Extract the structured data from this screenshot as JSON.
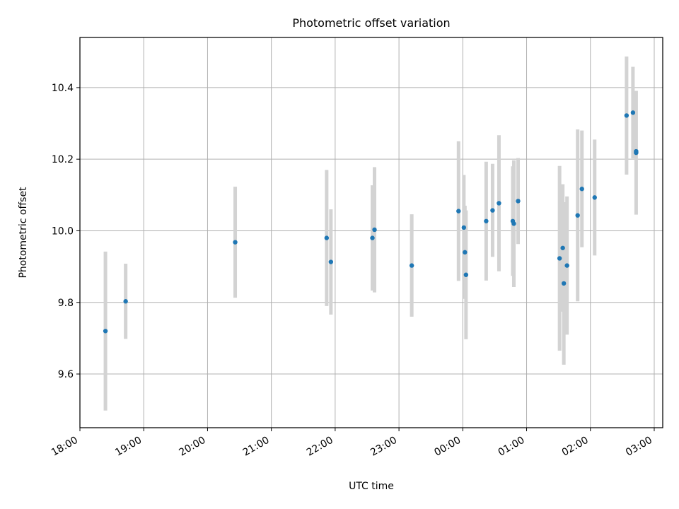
{
  "chart_data": {
    "type": "scatter",
    "title": "Photometric offset variation",
    "xlabel": "UTC time",
    "ylabel": "Photometric offset",
    "x_tick_labels": [
      "18:00",
      "19:00",
      "20:00",
      "21:00",
      "22:00",
      "23:00",
      "00:00",
      "01:00",
      "02:00",
      "03:00"
    ],
    "y_ticks": [
      9.6,
      9.8,
      10.0,
      10.2,
      10.4
    ],
    "y_tick_labels": [
      "9.6",
      "9.8",
      "10.0",
      "10.2",
      "10.4"
    ],
    "xlim": [
      "18:00",
      "03:08"
    ],
    "ylim": [
      9.45,
      10.54
    ],
    "grid": true,
    "colors": {
      "marker": "#1f77b4",
      "errorbar": "#d3d3d3",
      "grid": "#b0b0b0",
      "axes": "#000000"
    },
    "series": [
      {
        "points": [
          {
            "x": "18:24",
            "y": 9.72,
            "yerr": 0.222
          },
          {
            "x": "18:43",
            "y": 9.803,
            "yerr": 0.105
          },
          {
            "x": "20:26",
            "y": 9.968,
            "yerr": 0.155
          },
          {
            "x": "21:52",
            "y": 9.98,
            "yerr": 0.19
          },
          {
            "x": "21:56",
            "y": 9.913,
            "yerr": 0.147
          },
          {
            "x": "22:35",
            "y": 9.98,
            "yerr": 0.147
          },
          {
            "x": "22:37",
            "y": 10.003,
            "yerr": 0.175
          },
          {
            "x": "23:12",
            "y": 9.903,
            "yerr": 0.143
          },
          {
            "x": "23:56",
            "y": 10.055,
            "yerr": 0.195
          },
          {
            "x": "00:01",
            "y": 10.009,
            "yerr": 0.147
          },
          {
            "x": "00:02",
            "y": 9.94,
            "yerr": 0.13
          },
          {
            "x": "00:03",
            "y": 9.877,
            "yerr": 0.18
          },
          {
            "x": "00:22",
            "y": 10.027,
            "yerr": 0.166
          },
          {
            "x": "00:28",
            "y": 10.057,
            "yerr": 0.13
          },
          {
            "x": "00:34",
            "y": 10.077,
            "yerr": 0.19
          },
          {
            "x": "00:47",
            "y": 10.027,
            "yerr": 0.153
          },
          {
            "x": "00:48",
            "y": 10.02,
            "yerr": 0.177
          },
          {
            "x": "00:52",
            "y": 10.083,
            "yerr": 0.12
          },
          {
            "x": "01:31",
            "y": 9.923,
            "yerr": 0.258
          },
          {
            "x": "01:34",
            "y": 9.952,
            "yerr": 0.178
          },
          {
            "x": "01:35",
            "y": 9.853,
            "yerr": 0.227
          },
          {
            "x": "01:38",
            "y": 9.903,
            "yerr": 0.193
          },
          {
            "x": "01:48",
            "y": 10.043,
            "yerr": 0.24
          },
          {
            "x": "01:52",
            "y": 10.117,
            "yerr": 0.163
          },
          {
            "x": "02:04",
            "y": 10.093,
            "yerr": 0.162
          },
          {
            "x": "02:34",
            "y": 10.322,
            "yerr": 0.165
          },
          {
            "x": "02:40",
            "y": 10.33,
            "yerr": 0.128
          },
          {
            "x": "02:43",
            "y": 10.218,
            "yerr": 0.173
          },
          {
            "x": "02:43",
            "y": 10.222,
            "yerr": 0.012
          }
        ]
      }
    ]
  }
}
